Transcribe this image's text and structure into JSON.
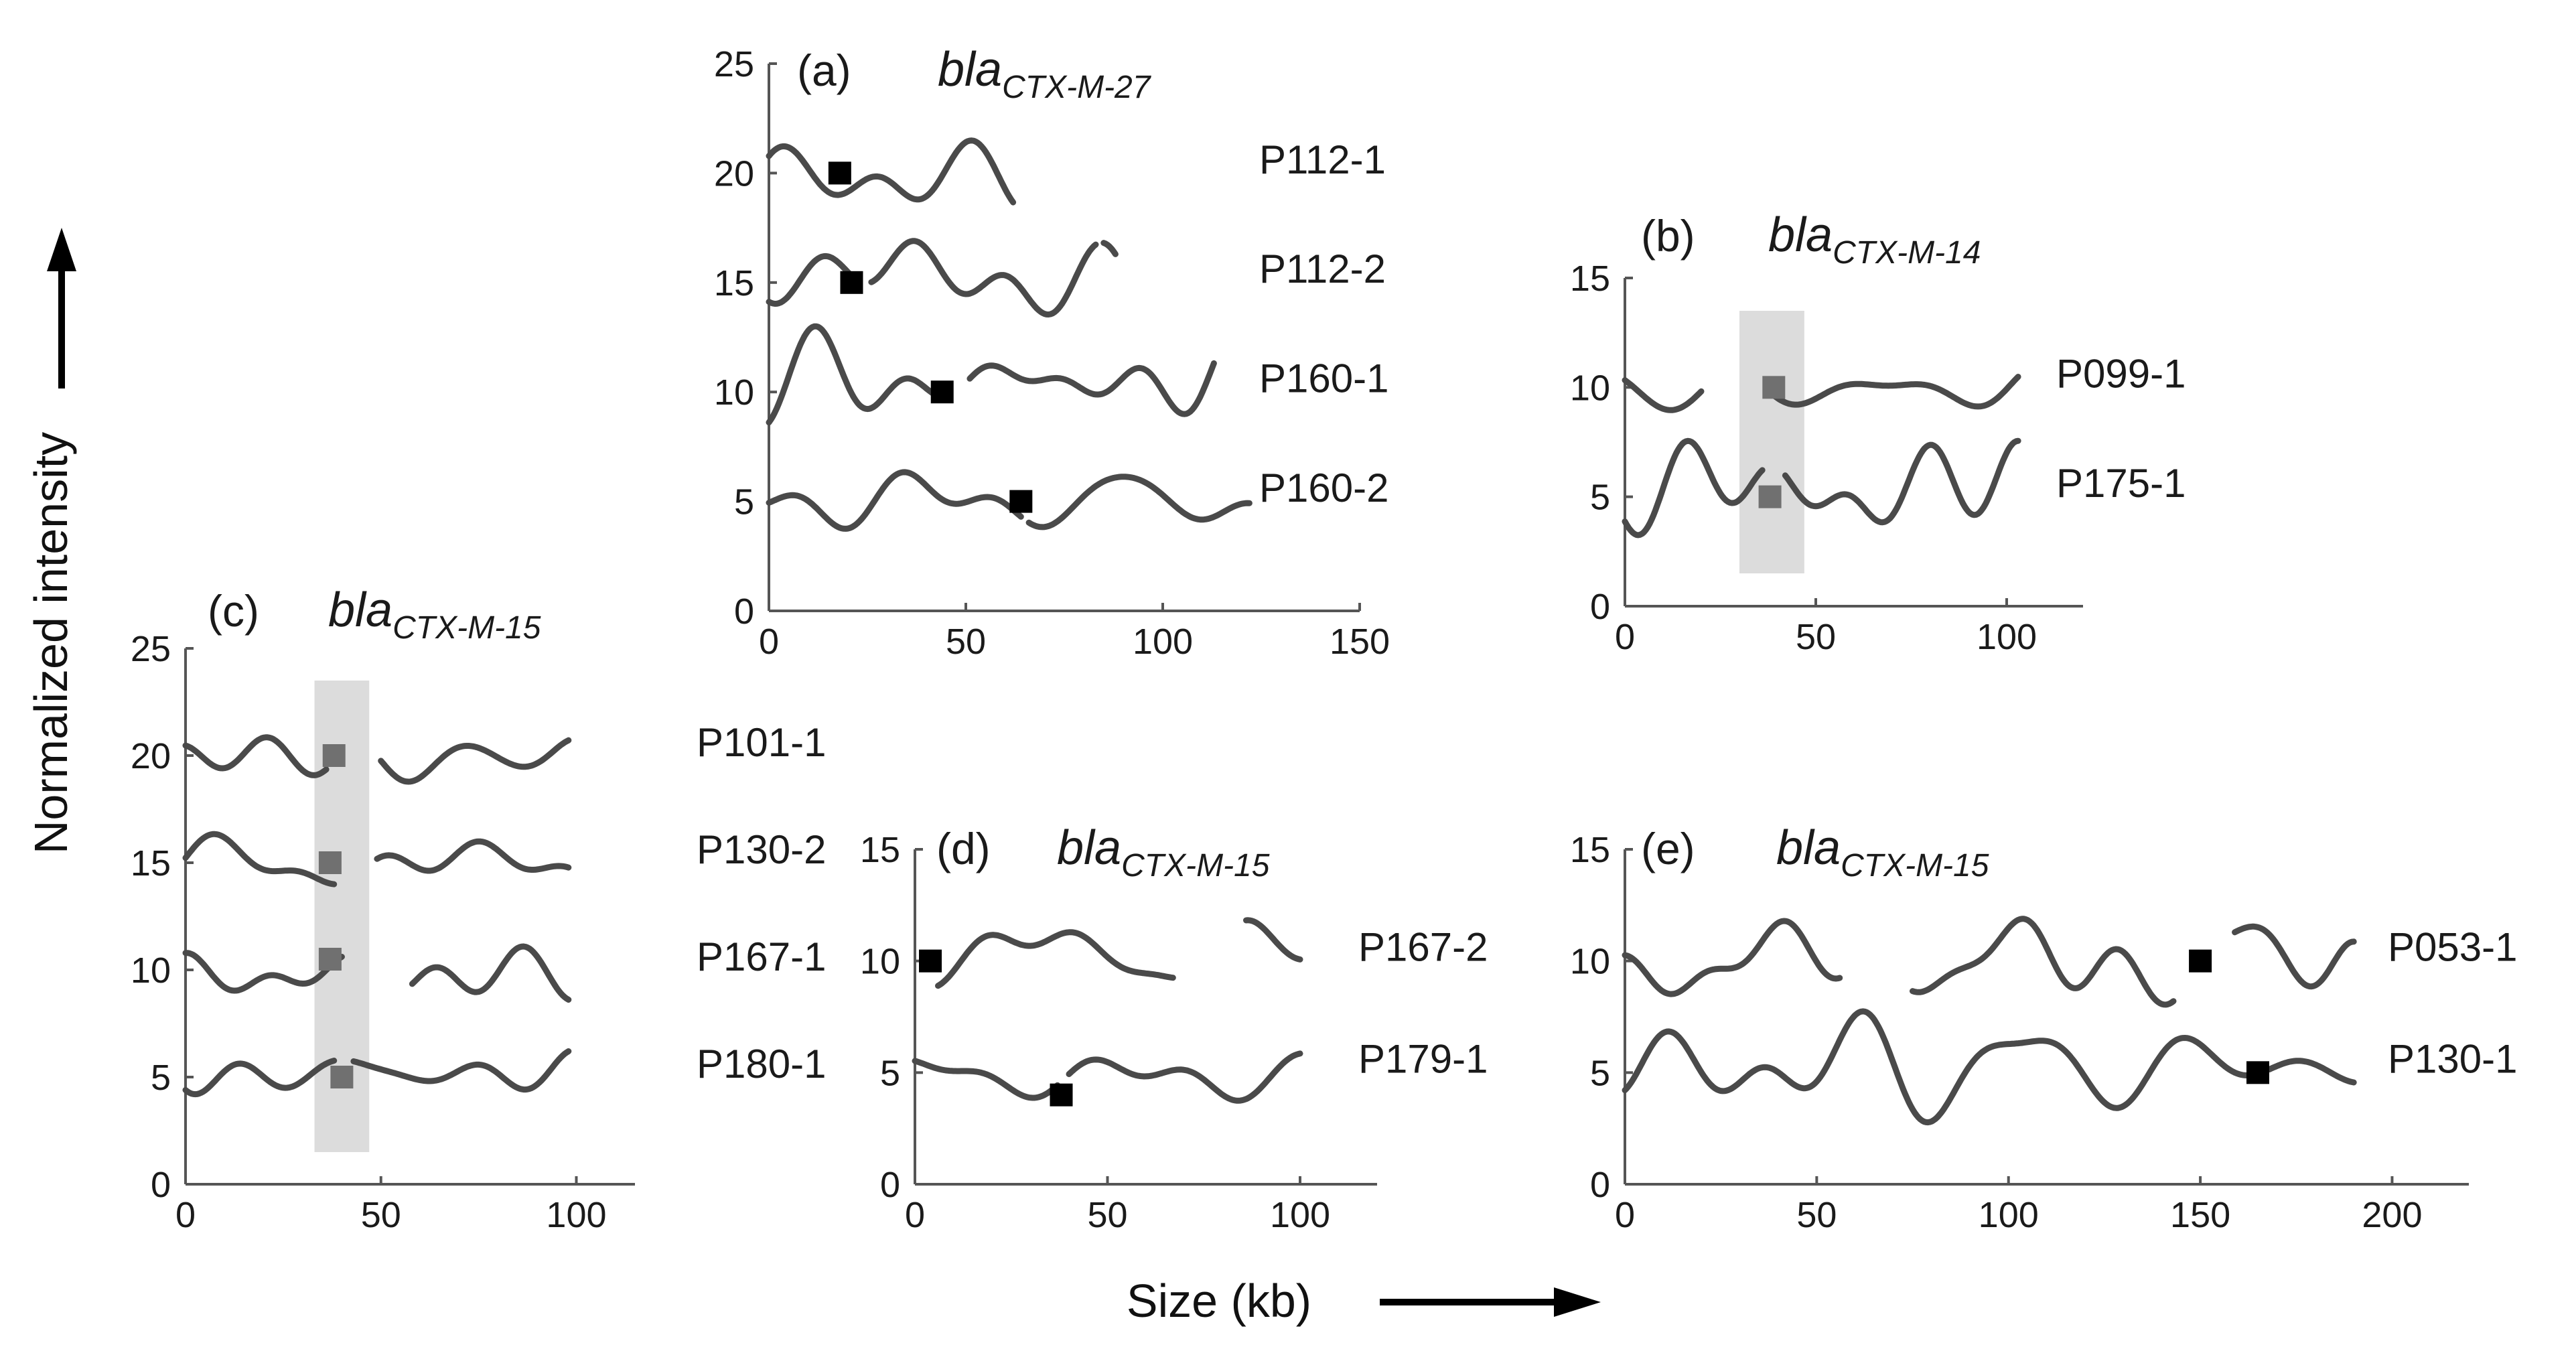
{
  "figure": {
    "y_label": "Normalized intensity",
    "x_label": "Size (kb)"
  },
  "chart_data": [
    {
      "type": "line",
      "panel": "(a)",
      "gene": "bla",
      "gene_subscript": "CTX-M-27",
      "xlim": [
        0,
        150
      ],
      "ylim": [
        0,
        25
      ],
      "xticks": [
        0,
        50,
        100,
        150
      ],
      "yticks": [
        0,
        5,
        10,
        15,
        20,
        25
      ],
      "highlight": null,
      "series": [
        {
          "name": "P112-1",
          "offset": 20,
          "length": 62,
          "seed": 11,
          "amp": 1.0,
          "gaps": [],
          "marker": {
            "x": 18,
            "y": 20,
            "color": "#000000"
          }
        },
        {
          "name": "P112-2",
          "offset": 15,
          "length": 88,
          "seed": 23,
          "amp": 1.2,
          "gaps": [
            [
              22,
              26
            ],
            [
              83,
              85
            ]
          ],
          "marker": {
            "x": 21,
            "y": 15,
            "color": "#000000"
          }
        },
        {
          "name": "P160-1",
          "offset": 10,
          "length": 113,
          "seed": 37,
          "amp": 1.0,
          "gaps": [
            [
              44,
              51
            ]
          ],
          "marker": {
            "x": 44,
            "y": 10,
            "color": "#000000"
          }
        },
        {
          "name": "P160-2",
          "offset": 5,
          "length": 122,
          "seed": 41,
          "amp": 0.8,
          "gaps": [
            [
              64,
              66
            ]
          ],
          "marker": {
            "x": 64,
            "y": 5,
            "color": "#000000"
          }
        }
      ]
    },
    {
      "type": "line",
      "panel": "(b)",
      "gene": "bla",
      "gene_subscript": "CTX-M-14",
      "xlim": [
        0,
        120
      ],
      "ylim": [
        0,
        15
      ],
      "xticks": [
        0,
        50,
        100
      ],
      "yticks": [
        0,
        5,
        10,
        15
      ],
      "highlight": [
        30,
        47
      ],
      "series": [
        {
          "name": "P099-1",
          "offset": 10,
          "length": 103,
          "seed": 53,
          "amp": 1.0,
          "gaps": [
            [
              20,
              38
            ]
          ],
          "marker": {
            "x": 39,
            "y": 10,
            "color": "#707070"
          }
        },
        {
          "name": "P175-1",
          "offset": 5,
          "length": 103,
          "seed": 61,
          "amp": 1.1,
          "gaps": [
            [
              36,
              42
            ]
          ],
          "marker": {
            "x": 38,
            "y": 5,
            "color": "#707070"
          }
        }
      ]
    },
    {
      "type": "line",
      "panel": "(c)",
      "gene": "bla",
      "gene_subscript": "CTX-M-15",
      "xlim": [
        0,
        115
      ],
      "ylim": [
        0,
        25
      ],
      "xticks": [
        0,
        50,
        100
      ],
      "yticks": [
        0,
        5,
        10,
        15,
        20,
        25
      ],
      "highlight": [
        33,
        47
      ],
      "series": [
        {
          "name": "P101-1",
          "offset": 20,
          "length": 98,
          "seed": 71,
          "amp": 1.0,
          "gaps": [
            [
              36,
              50
            ]
          ],
          "marker": {
            "x": 38,
            "y": 20,
            "color": "#707070"
          }
        },
        {
          "name": "P130-2",
          "offset": 15,
          "length": 98,
          "seed": 79,
          "amp": 1.0,
          "gaps": [
            [
              38,
              49
            ]
          ],
          "marker": {
            "x": 37,
            "y": 15,
            "color": "#707070"
          }
        },
        {
          "name": "P167-1",
          "offset": 10,
          "length": 98,
          "seed": 83,
          "amp": 1.0,
          "gaps": [
            [
              40,
              58
            ]
          ],
          "marker": {
            "x": 37,
            "y": 10.5,
            "color": "#707070"
          }
        },
        {
          "name": "P180-1",
          "offset": 5,
          "length": 98,
          "seed": 97,
          "amp": 1.0,
          "gaps": [
            [
              38,
              43
            ]
          ],
          "marker": {
            "x": 40,
            "y": 5,
            "color": "#707070"
          }
        }
      ]
    },
    {
      "type": "line",
      "panel": "(d)",
      "gene": "bla",
      "gene_subscript": "CTX-M-15",
      "xlim": [
        0,
        120
      ],
      "ylim": [
        0,
        15
      ],
      "xticks": [
        0,
        50,
        100
      ],
      "yticks": [
        0,
        5,
        10,
        15
      ],
      "highlight": null,
      "series": [
        {
          "name": "P167-2",
          "offset": 10,
          "length": 100,
          "seed": 101,
          "amp": 1.0,
          "gaps": [
            [
              0,
              6
            ],
            [
              67,
              86
            ]
          ],
          "marker": {
            "x": 4,
            "y": 10,
            "color": "#000000"
          }
        },
        {
          "name": "P179-1",
          "offset": 5,
          "length": 100,
          "seed": 113,
          "amp": 1.0,
          "gaps": [
            [
              37,
              40
            ]
          ],
          "marker": {
            "x": 38,
            "y": 4,
            "color": "#000000"
          }
        }
      ]
    },
    {
      "type": "line",
      "panel": "(e)",
      "gene": "bla",
      "gene_subscript": "CTX-M-15",
      "xlim": [
        0,
        220
      ],
      "ylim": [
        0,
        15
      ],
      "xticks": [
        0,
        50,
        100,
        150,
        200
      ],
      "yticks": [
        0,
        5,
        10,
        15
      ],
      "highlight": null,
      "series": [
        {
          "name": "P053-1",
          "offset": 10,
          "length": 190,
          "seed": 127,
          "amp": 1.2,
          "gaps": [
            [
              56,
              75
            ],
            [
              143,
              159
            ]
          ],
          "marker": {
            "x": 150,
            "y": 10,
            "color": "#000000"
          }
        },
        {
          "name": "P130-1",
          "offset": 5,
          "length": 190,
          "seed": 131,
          "amp": 1.3,
          "gaps": [
            [
              163,
              168
            ]
          ],
          "marker": {
            "x": 165,
            "y": 5,
            "color": "#000000"
          }
        }
      ]
    }
  ]
}
